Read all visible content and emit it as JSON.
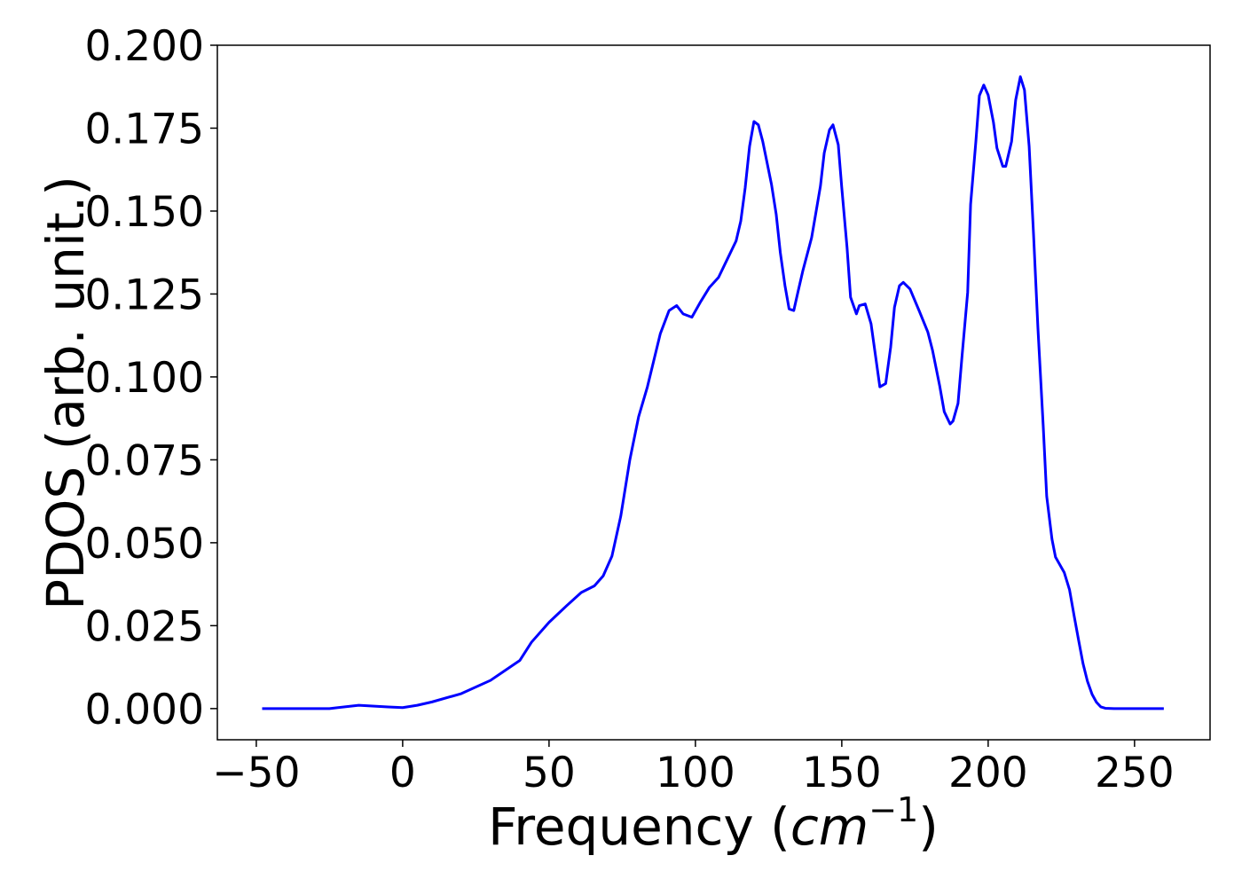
{
  "chart_data": {
    "type": "line",
    "ylabel": "PDOS (arb. unit.)",
    "xlabel": [
      "Frequency (",
      "cm",
      "−1",
      ")"
    ],
    "color": "#0000ff",
    "grid": false,
    "xlim": [
      -63.3,
      275.8
    ],
    "ylim": [
      -0.0094,
      0.2
    ],
    "xticks": [
      {
        "value": -50,
        "label": "−50"
      },
      0,
      50,
      100,
      150,
      200,
      250
    ],
    "yticks": [
      {
        "value": 0,
        "label": "0.000"
      },
      {
        "value": 0.025,
        "label": "0.025"
      },
      {
        "value": 0.05,
        "label": "0.050"
      },
      {
        "value": 0.075,
        "label": "0.075"
      },
      {
        "value": 0.1,
        "label": "0.100"
      },
      {
        "value": 0.125,
        "label": "0.125"
      },
      {
        "value": 0.15,
        "label": "0.150"
      },
      {
        "value": 0.175,
        "label": "0.175"
      },
      {
        "value": 0.2,
        "label": "0.200"
      }
    ],
    "x": [
      -48,
      -25,
      -15,
      -5,
      0,
      5,
      10,
      20,
      30,
      40,
      44,
      50,
      56,
      61,
      65.5,
      68.5,
      71.5,
      74.5,
      77.6,
      80.6,
      83.6,
      88,
      91,
      93.6,
      95.8,
      98.8,
      101.8,
      104.8,
      107.9,
      110.9,
      113.9,
      115.5,
      117,
      118.5,
      120,
      121.5,
      123,
      126,
      127.6,
      129,
      130.6,
      132,
      133.6,
      135,
      136.7,
      139.7,
      141,
      142.7,
      144,
      145.8,
      147,
      148.8,
      150,
      151.8,
      153,
      155,
      156,
      158,
      160,
      161.5,
      163,
      165,
      166.7,
      168,
      169.7,
      171,
      173.3,
      176.4,
      179.4,
      181,
      183.4,
      185,
      187,
      188,
      189.7,
      191,
      193,
      194,
      195.8,
      197,
      198.5,
      200,
      201.8,
      203,
      205,
      206,
      208,
      209.4,
      211,
      212.4,
      214,
      215.5,
      217,
      218.8,
      220,
      221.8,
      223,
      226,
      227.8,
      229.4,
      230.9,
      232.4,
      233.9,
      235.5,
      237,
      238.5,
      240,
      243,
      260
    ],
    "values": [
      0,
      0,
      0.001,
      0.0005,
      0.0003,
      0.001,
      0.002,
      0.0045,
      0.0085,
      0.0145,
      0.02,
      0.026,
      0.031,
      0.035,
      0.037,
      0.04,
      0.046,
      0.058,
      0.075,
      0.088,
      0.097,
      0.113,
      0.12,
      0.1215,
      0.119,
      0.118,
      0.1227,
      0.127,
      0.13,
      0.1355,
      0.141,
      0.147,
      0.157,
      0.1695,
      0.177,
      0.176,
      0.171,
      0.158,
      0.149,
      0.1375,
      0.1275,
      0.1205,
      0.12,
      0.1255,
      0.132,
      0.142,
      0.1487,
      0.1575,
      0.1675,
      0.1745,
      0.176,
      0.17,
      0.157,
      0.139,
      0.124,
      0.119,
      0.1215,
      0.122,
      0.116,
      0.1065,
      0.097,
      0.098,
      0.109,
      0.121,
      0.1275,
      0.1285,
      0.1265,
      0.12,
      0.1135,
      0.108,
      0.0975,
      0.0895,
      0.0858,
      0.0867,
      0.092,
      0.1055,
      0.1255,
      0.152,
      0.171,
      0.1848,
      0.188,
      0.185,
      0.1768,
      0.169,
      0.1635,
      0.1635,
      0.171,
      0.1835,
      0.1905,
      0.1865,
      0.1695,
      0.143,
      0.1147,
      0.0853,
      0.064,
      0.0511,
      0.0457,
      0.041,
      0.0358,
      0.0278,
      0.0206,
      0.0136,
      0.0083,
      0.0043,
      0.0019,
      0.0005,
      0.0001,
      0,
      0
    ]
  }
}
